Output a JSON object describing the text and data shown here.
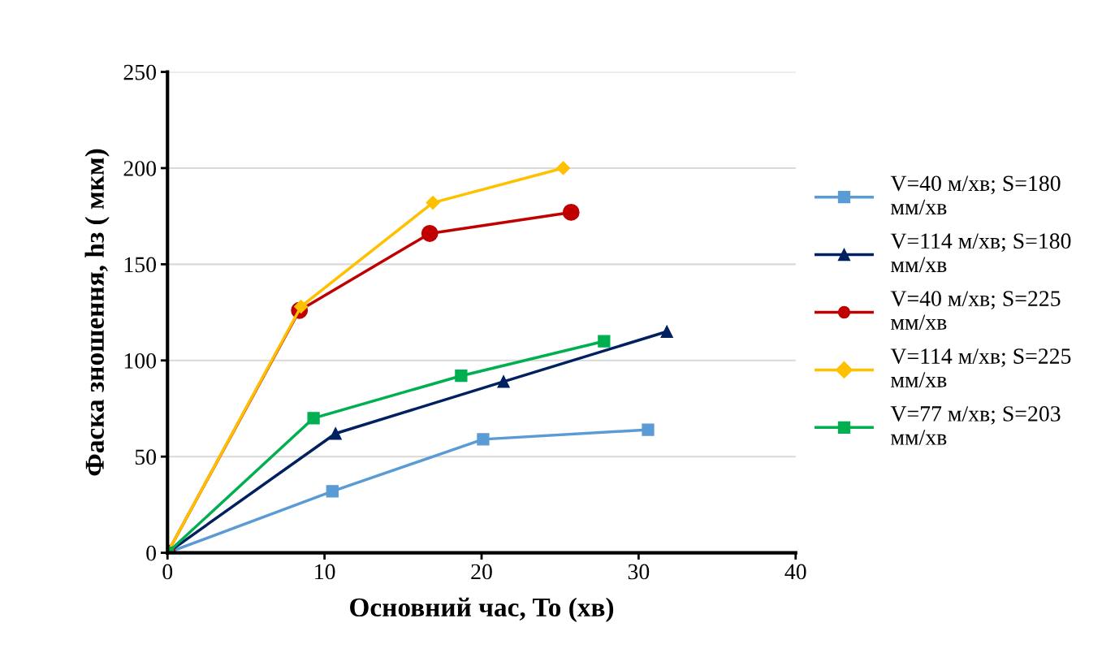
{
  "chart_data": {
    "type": "line",
    "xlabel": "Основний час, To (хв)",
    "ylabel": "Фаска зношення, hз ( мкм)",
    "xlim": [
      0,
      40
    ],
    "xticks": [
      0,
      10,
      20,
      30,
      40
    ],
    "ylim": [
      0,
      250
    ],
    "yticks": [
      0,
      50,
      100,
      150,
      200,
      250
    ],
    "grid": "y",
    "legend": "right",
    "line_style": "solid",
    "series": [
      {
        "name": "V=40 м/хв; S=180 мм/хв",
        "color": "#5b9bd5",
        "marker": "square",
        "x": [
          0,
          10.5,
          20.1,
          30.6
        ],
        "values": [
          0,
          32,
          59,
          64
        ]
      },
      {
        "name": "V=114 м/хв; S=180 мм/хв",
        "color": "#002060",
        "marker": "triangle",
        "x": [
          0,
          10.7,
          21.4,
          31.8
        ],
        "values": [
          0,
          62,
          89,
          115
        ]
      },
      {
        "name": "V=40 м/хв; S=225 мм/хв",
        "color": "#c00000",
        "marker": "circle",
        "x": [
          0,
          8.4,
          16.7,
          25.7
        ],
        "values": [
          0,
          126,
          166,
          177
        ]
      },
      {
        "name": "V=114 м/хв; S=225 мм/хв",
        "color": "#ffc000",
        "marker": "diamond",
        "x": [
          0,
          8.5,
          16.9,
          25.2
        ],
        "values": [
          0,
          128,
          182,
          200
        ]
      },
      {
        "name": "V=77 м/хв; S=203 мм/хв",
        "color": "#00b050",
        "marker": "square",
        "x": [
          0,
          9.3,
          18.7,
          27.8
        ],
        "values": [
          0,
          70,
          92,
          110
        ]
      }
    ]
  }
}
